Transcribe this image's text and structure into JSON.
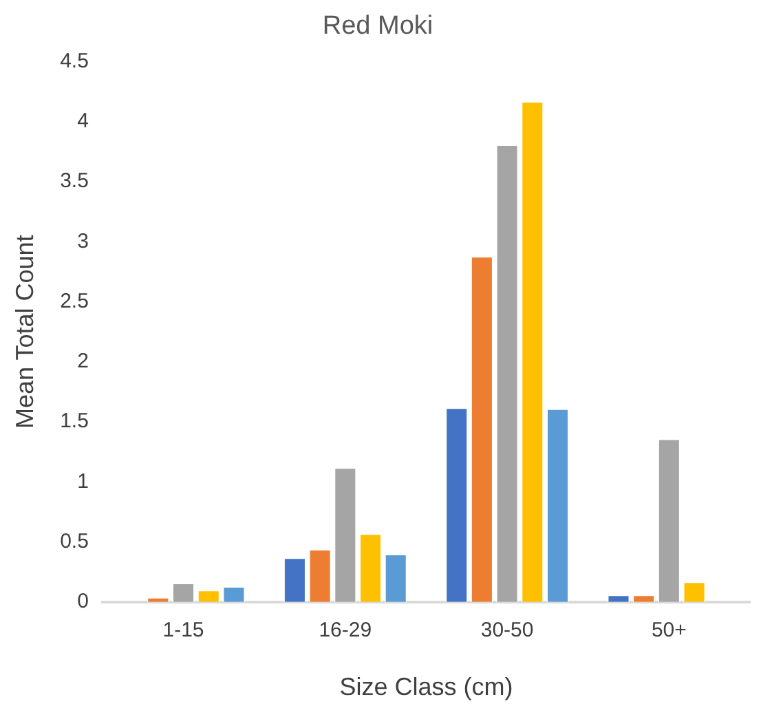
{
  "chart_data": {
    "type": "bar",
    "title": "Red Moki",
    "xlabel": "Size Class (cm)",
    "ylabel": "Mean Total Count",
    "categories": [
      "1-15",
      "16-29",
      "30-50",
      "50+"
    ],
    "series": [
      {
        "color": "#4472c4",
        "values": [
          0,
          0.37,
          1.62,
          0.06
        ]
      },
      {
        "color": "#ed7d31",
        "values": [
          0.04,
          0.44,
          2.88,
          0.06
        ]
      },
      {
        "color": "#a5a5a5",
        "values": [
          0.16,
          1.12,
          3.81,
          1.36
        ]
      },
      {
        "color": "#ffc000",
        "values": [
          0.1,
          0.57,
          4.17,
          0.17
        ]
      },
      {
        "color": "#5b9bd5",
        "values": [
          0.13,
          0.4,
          1.61,
          0
        ]
      }
    ],
    "ylim": [
      0,
      4.5
    ],
    "yticks": [
      0,
      0.5,
      1,
      1.5,
      2,
      2.5,
      3,
      3.5,
      4,
      4.5
    ],
    "grid": false,
    "legend": false
  }
}
